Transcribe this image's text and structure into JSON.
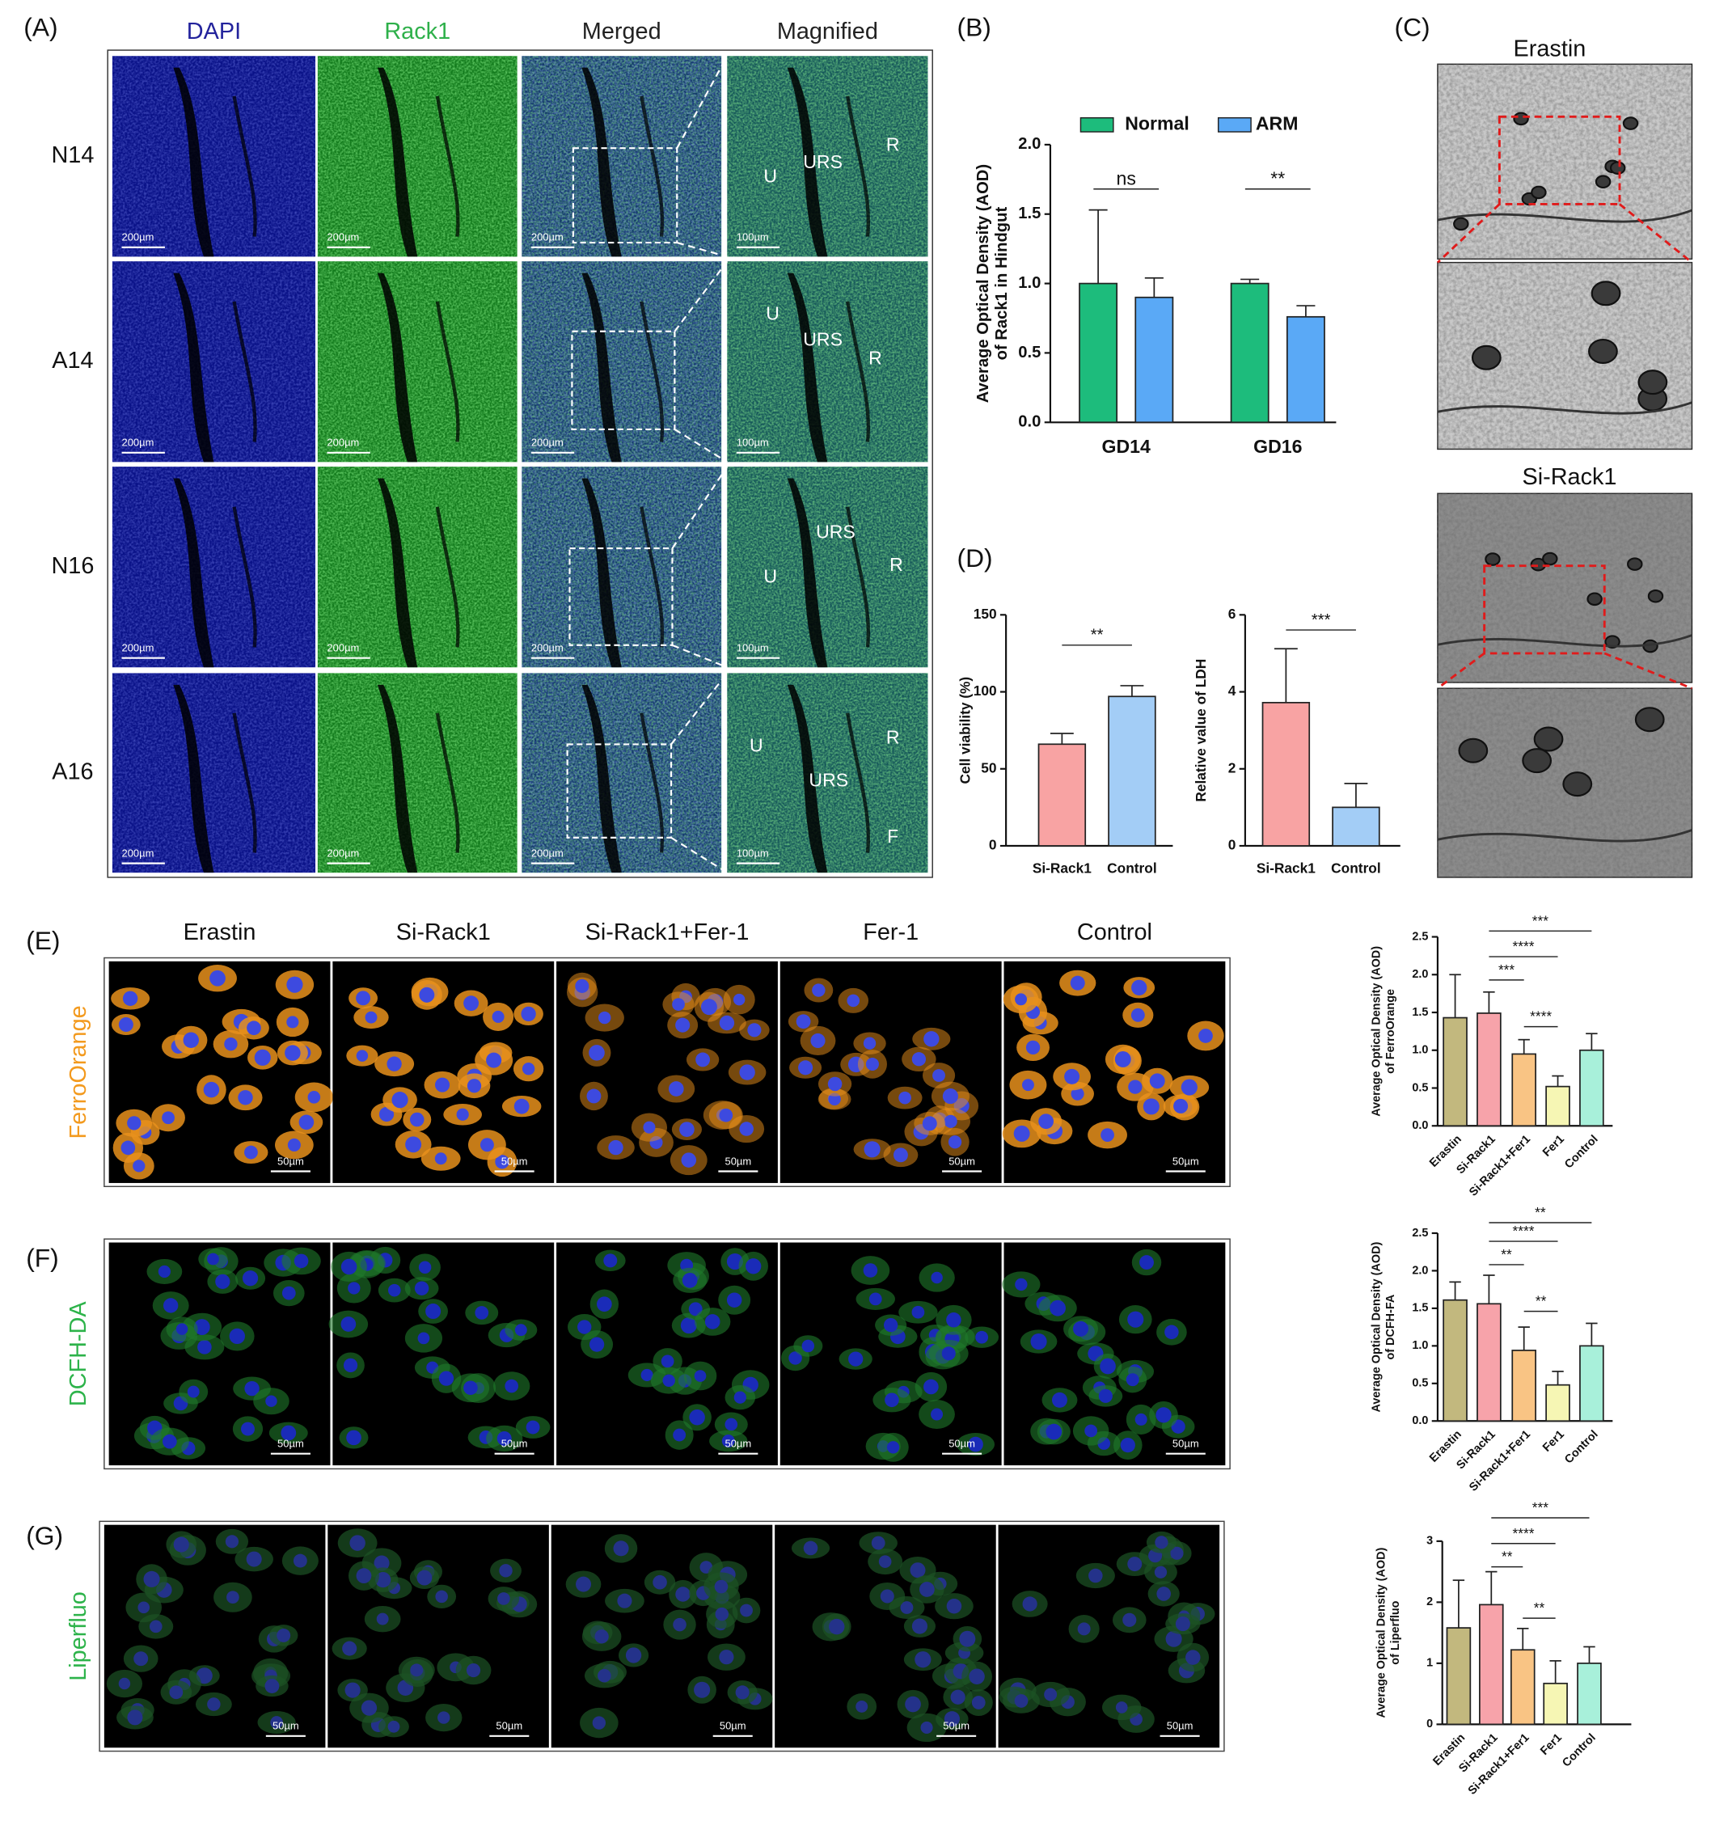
{
  "figure": {
    "panel_labels": [
      "(A)",
      "(B)",
      "(C)",
      "(D)",
      "(E)",
      "(F)",
      "(G)"
    ],
    "panel_a": {
      "columns": [
        "DAPI",
        "Rack1",
        "Merged",
        "Magnified"
      ],
      "column_colors": [
        "#23239c",
        "#2eb04a",
        "#222222",
        "#222222"
      ],
      "rows": [
        {
          "label": "N14",
          "scale_bars": [
            "200µm",
            "200µm",
            "200µm",
            "100µm"
          ],
          "regions": [
            "U",
            "URS",
            "R"
          ]
        },
        {
          "label": "A14",
          "scale_bars": [
            "200µm",
            "200µm",
            "200µm",
            "100µm"
          ],
          "regions": [
            "U",
            "URS",
            "R"
          ]
        },
        {
          "label": "N16",
          "scale_bars": [
            "200µm",
            "200µm",
            "200µm",
            "100µm"
          ],
          "regions": [
            "URS",
            "U",
            "R"
          ]
        },
        {
          "label": "A16",
          "scale_bars": [
            "200µm",
            "200µm",
            "200µm",
            "100µm"
          ],
          "regions": [
            "U",
            "R",
            "URS",
            "F"
          ]
        }
      ]
    },
    "panel_c": {
      "titles": [
        "Erastin",
        "Si-Rack1"
      ]
    },
    "panel_efg": {
      "columns": [
        "Erastin",
        "Si-Rack1",
        "Si-Rack1+Fer-1",
        "Fer-1",
        "Control"
      ],
      "rows": [
        {
          "label": "FerroOrange",
          "color": "#f39a1e",
          "scale_bars": [
            "50µm",
            "50µm",
            "50µm",
            "50µm",
            "50µm"
          ]
        },
        {
          "label": "DCFH-DA",
          "color": "#2db34a",
          "scale_bars": [
            "50µm",
            "50µm",
            "50µm",
            "50µm",
            "50µm"
          ]
        },
        {
          "label": "Liperfluo",
          "color": "#2db34a",
          "scale_bars": [
            "50µm",
            "50µm",
            "50µm",
            "50µm",
            "50µm"
          ]
        }
      ]
    }
  },
  "chart_data": [
    {
      "type": "bar",
      "ylabel": [
        "Average Optical Density (AOD)",
        "of Rack1 in Hindgut"
      ],
      "categories": [
        "GD14",
        "GD16"
      ],
      "series": [
        {
          "name": "Normal",
          "color": "#1dbc7c",
          "values": [
            1.0,
            1.0
          ],
          "errors": [
            0.53,
            0.03
          ]
        },
        {
          "name": "ARM",
          "color": "#5aa9f6",
          "values": [
            0.9,
            0.76
          ],
          "errors": [
            0.14,
            0.08
          ]
        }
      ],
      "ylim": [
        0,
        2
      ],
      "yticks": [
        {
          "value": 0,
          "label": "0.0"
        },
        0.5,
        {
          "value": 1,
          "label": "1.0"
        },
        1.5,
        {
          "value": 2,
          "label": "2.0"
        }
      ],
      "legend": "top",
      "annotations": [
        {
          "label": "ns",
          "category": "GD14"
        },
        {
          "label": "**",
          "category": "GD16"
        }
      ]
    },
    {
      "type": "bar",
      "ylabel": [
        "Cell viability (%)"
      ],
      "categories": [
        "Si-Rack1",
        "Control"
      ],
      "values": [
        66,
        97
      ],
      "errors": [
        7,
        7
      ],
      "colors": [
        "#f8a3a3",
        "#a3cdf6"
      ],
      "ylim": [
        0,
        150
      ],
      "yticks": [
        0,
        50,
        100,
        150
      ],
      "annotations": [
        {
          "label": "**",
          "between": [
            "Si-Rack1",
            "Control"
          ]
        }
      ]
    },
    {
      "type": "bar",
      "ylabel": [
        "Relative value of LDH"
      ],
      "categories": [
        "Si-Rack1",
        "Control"
      ],
      "values": [
        3.72,
        1.0
      ],
      "errors": [
        1.4,
        0.62
      ],
      "colors": [
        "#f8a3a3",
        "#a3cdf6"
      ],
      "ylim": [
        0,
        6
      ],
      "yticks": [
        0,
        2,
        4,
        6
      ],
      "annotations": [
        {
          "label": "***",
          "between": [
            "Si-Rack1",
            "Control"
          ]
        }
      ]
    },
    {
      "type": "bar",
      "ylabel": [
        "Average Optical Density (AOD)",
        "of FerroOrange"
      ],
      "categories": [
        "Erastin",
        "Si-Rack1",
        "Si-Rack1+Fer1",
        "Fer1",
        "Control"
      ],
      "values": [
        1.43,
        1.49,
        0.95,
        0.52,
        1.0
      ],
      "errors": [
        0.57,
        0.28,
        0.19,
        0.14,
        0.22
      ],
      "colors": [
        "#c2b87e",
        "#f7a3aa",
        "#f9c484",
        "#f6f6b4",
        "#a8f0da"
      ],
      "ylim": [
        0,
        2.5
      ],
      "yticks": [
        {
          "value": 0,
          "label": "0.0"
        },
        0.5,
        {
          "value": 1,
          "label": "1.0"
        },
        1.5,
        {
          "value": 2,
          "label": "2.0"
        },
        2.5
      ],
      "annotations": [
        {
          "label": "***",
          "between": [
            "Si-Rack1",
            "Control"
          ]
        },
        {
          "label": "****",
          "between": [
            "Si-Rack1",
            "Fer1"
          ]
        },
        {
          "label": "***",
          "between": [
            "Si-Rack1",
            "Si-Rack1+Fer1"
          ]
        },
        {
          "label": "****",
          "between": [
            "Si-Rack1+Fer1",
            "Fer1"
          ]
        }
      ]
    },
    {
      "type": "bar",
      "ylabel": [
        "Average Optical Density (AOD)",
        "of DCFH-FA"
      ],
      "categories": [
        "Erastin",
        "Si-Rack1",
        "Si-Rack1+Fer1",
        "Fer1",
        "Control"
      ],
      "values": [
        1.61,
        1.56,
        0.94,
        0.48,
        1.0
      ],
      "errors": [
        0.24,
        0.38,
        0.31,
        0.18,
        0.3
      ],
      "colors": [
        "#c2b87e",
        "#f7a3aa",
        "#f9c484",
        "#f6f6b4",
        "#a8f0da"
      ],
      "ylim": [
        0,
        2.5
      ],
      "yticks": [
        {
          "value": 0,
          "label": "0.0"
        },
        0.5,
        {
          "value": 1,
          "label": "1.0"
        },
        1.5,
        {
          "value": 2,
          "label": "2.0"
        },
        2.5
      ],
      "annotations": [
        {
          "label": "**",
          "between": [
            "Si-Rack1",
            "Control"
          ]
        },
        {
          "label": "****",
          "between": [
            "Si-Rack1",
            "Fer1"
          ]
        },
        {
          "label": "**",
          "between": [
            "Si-Rack1",
            "Si-Rack1+Fer1"
          ]
        },
        {
          "label": "**",
          "between": [
            "Si-Rack1+Fer1",
            "Fer1"
          ]
        }
      ]
    },
    {
      "type": "bar",
      "ylabel": [
        "Average Optical Density (AOD)",
        "of Liperfluo"
      ],
      "categories": [
        "Erastin",
        "Si-Rack1",
        "Si-Rack1+Fer1",
        "Fer1",
        "Control"
      ],
      "values": [
        1.58,
        1.96,
        1.22,
        0.67,
        1.0
      ],
      "errors": [
        0.78,
        0.54,
        0.35,
        0.37,
        0.27
      ],
      "colors": [
        "#c2b87e",
        "#f7a3aa",
        "#f9c484",
        "#f6f6b4",
        "#a8f0da"
      ],
      "ylim": [
        0,
        3
      ],
      "yticks": [
        0,
        1,
        2,
        3
      ],
      "annotations": [
        {
          "label": "***",
          "between": [
            "Si-Rack1",
            "Control"
          ]
        },
        {
          "label": "****",
          "between": [
            "Si-Rack1",
            "Fer1"
          ]
        },
        {
          "label": "**",
          "between": [
            "Si-Rack1",
            "Si-Rack1+Fer1"
          ]
        },
        {
          "label": "**",
          "between": [
            "Si-Rack1+Fer1",
            "Fer1"
          ]
        }
      ]
    }
  ]
}
